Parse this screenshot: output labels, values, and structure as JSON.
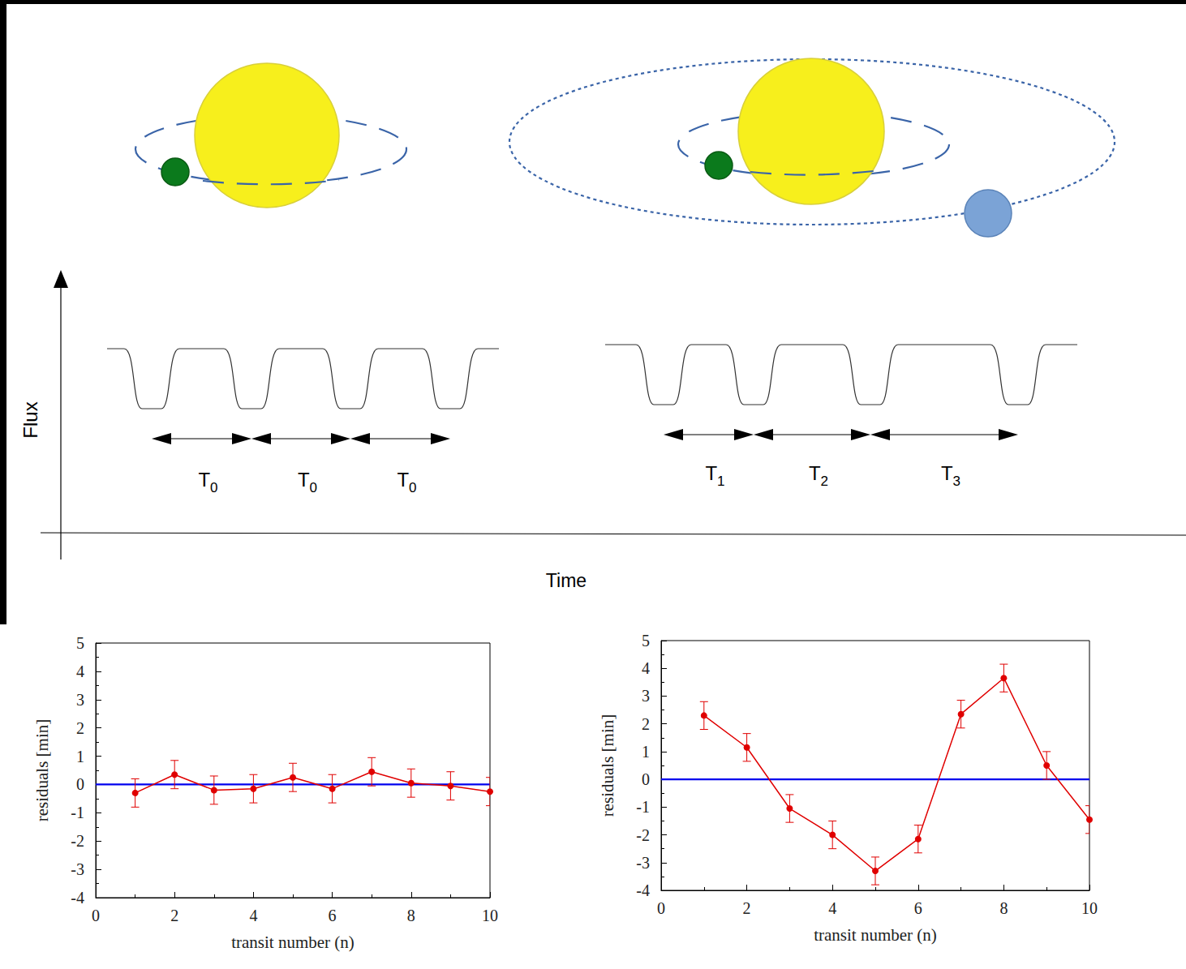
{
  "diagram": {
    "light_curve_axes": {
      "y_label": "Flux",
      "x_label": "Time"
    },
    "panels": [
      {
        "periods": [
          {
            "base": "T",
            "sub": "0"
          },
          {
            "base": "T",
            "sub": "0"
          },
          {
            "base": "T",
            "sub": "0"
          }
        ]
      },
      {
        "periods": [
          {
            "base": "T",
            "sub": "1"
          },
          {
            "base": "T",
            "sub": "2"
          },
          {
            "base": "T",
            "sub": "3"
          }
        ]
      }
    ]
  },
  "chart_data": [
    {
      "type": "line",
      "x_label": "transit number (n)",
      "y_label": "residuals [min]",
      "xlim": [
        0,
        10
      ],
      "xticks": [
        0,
        2,
        4,
        6,
        8,
        10
      ],
      "ylim": [
        -4,
        5
      ],
      "yticks": [
        -4,
        -3,
        -2,
        -1,
        0,
        1,
        2,
        3,
        4,
        5
      ],
      "grid": false,
      "series": [
        {
          "color": "#e00000",
          "marker": "circle",
          "x": [
            1,
            2,
            3,
            4,
            5,
            6,
            7,
            8,
            9,
            10
          ],
          "values": [
            -0.3,
            0.35,
            -0.2,
            -0.15,
            0.25,
            -0.15,
            0.45,
            0.05,
            -0.05,
            -0.25
          ],
          "errors": [
            0.5,
            0.5,
            0.5,
            0.5,
            0.5,
            0.5,
            0.5,
            0.5,
            0.5,
            0.5
          ]
        },
        {
          "color": "#0000ee",
          "x": [
            0,
            10
          ],
          "values": [
            0,
            0
          ]
        }
      ]
    },
    {
      "type": "line",
      "x_label": "transit number (n)",
      "y_label": "residuals [min]",
      "xlim": [
        0,
        10
      ],
      "xticks": [
        0,
        2,
        4,
        6,
        8,
        10
      ],
      "ylim": [
        -4,
        5
      ],
      "yticks": [
        -4,
        -3,
        -2,
        -1,
        0,
        1,
        2,
        3,
        4,
        5
      ],
      "grid": false,
      "series": [
        {
          "color": "#e00000",
          "marker": "circle",
          "x": [
            1,
            2,
            3,
            4,
            5,
            6,
            7,
            8,
            9,
            10
          ],
          "values": [
            2.3,
            1.15,
            -1.05,
            -2.0,
            -3.3,
            -2.15,
            2.35,
            3.65,
            0.5,
            -1.45
          ],
          "errors": [
            0.5,
            0.5,
            0.5,
            0.5,
            0.5,
            0.5,
            0.5,
            0.5,
            0.5,
            0.5
          ]
        },
        {
          "color": "#0000ee",
          "x": [
            0,
            10
          ],
          "values": [
            0,
            0
          ]
        }
      ]
    }
  ]
}
